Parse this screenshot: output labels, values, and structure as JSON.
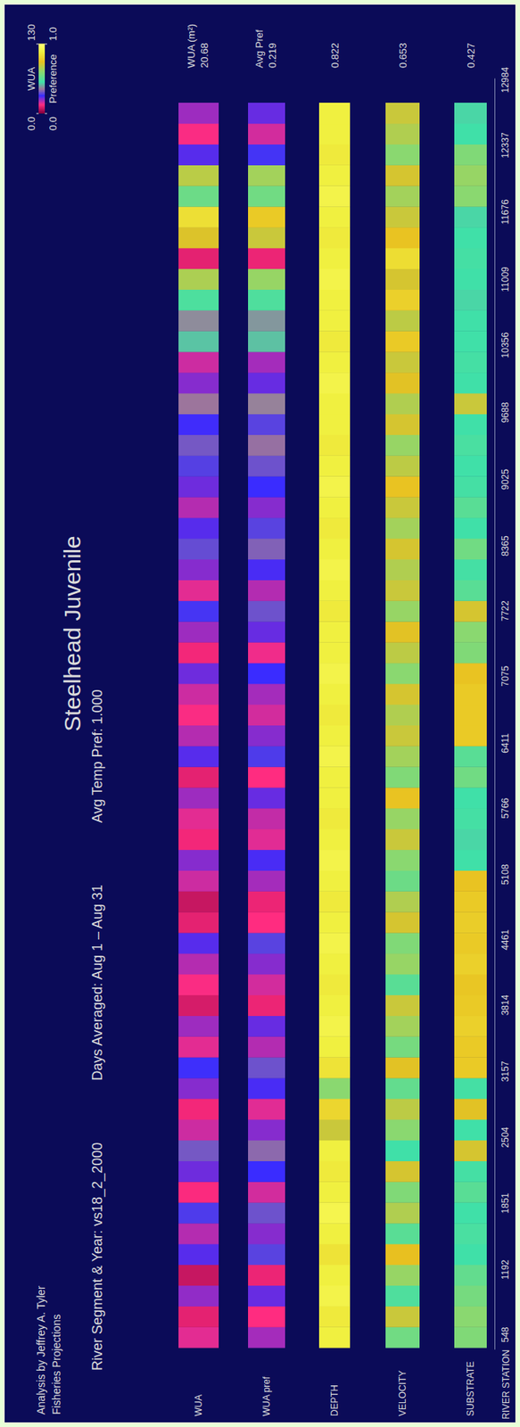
{
  "chart_data": {
    "type": "heatmap",
    "title": "Steelhead Juvenile",
    "credit": [
      "Analysis by Jeffrey A. Tyler",
      "Fisheries Projections"
    ],
    "subtitle": [
      "River Segment & Year: vs18_2_2000",
      "Days Averaged: Aug 1 – Aug 31",
      "Avg Temp Pref: 1.000"
    ],
    "x_label": "RIVER STATION",
    "xlim": [
      400,
      13000
    ],
    "xticks": [
      548,
      1192,
      1851,
      2504,
      3157,
      3814,
      4461,
      5108,
      5766,
      6411,
      7075,
      7722,
      8365,
      9025,
      9688,
      10356,
      11009,
      11676,
      12337,
      12984
    ],
    "extent": [
      420,
      12760
    ],
    "color_bars": [
      {
        "label": "WUA",
        "range": [
          0,
          130
        ],
        "ticks": [
          {
            "value": 0,
            "label": "0.0"
          },
          130
        ],
        "strips": [
          {
            "name": "WUA",
            "summary_label": "WUA (m²)",
            "summary": 20.68,
            "values": [
              18,
              12,
              25,
              8,
              30,
              22,
              35,
              15,
              28,
              40,
              20,
              14,
              26,
              33,
              18,
              24,
              10,
              16,
              22,
              30,
              12,
              8,
              20,
              26,
              14,
              18,
              24,
              12,
              30,
              22,
              16,
              20,
              28,
              14,
              24,
              34,
              18,
              26,
              38,
              30,
              22,
              28,
              36,
              40,
              32,
              45,
              26,
              20,
              55,
              48,
              62,
              85,
              12,
              95,
              110,
              70,
              88,
              30,
              16,
              24
            ]
          }
        ]
      },
      {
        "label": "Preference",
        "range": [
          0,
          1
        ],
        "ticks": [
          {
            "value": 0,
            "label": "0.0"
          },
          {
            "value": 1,
            "label": "1.0"
          }
        ],
        "strips": [
          {
            "name": "WUA pref",
            "summary_label": "Avg Pref",
            "summary": 0.219,
            "values": [
              0.18,
              0.12,
              0.22,
              0.1,
              0.28,
              0.2,
              0.3,
              0.15,
              0.25,
              0.33,
              0.2,
              0.14,
              0.24,
              0.3,
              0.17,
              0.22,
              0.1,
              0.15,
              0.2,
              0.28,
              0.12,
              0.1,
              0.18,
              0.24,
              0.14,
              0.16,
              0.22,
              0.12,
              0.27,
              0.2,
              0.15,
              0.18,
              0.25,
              0.13,
              0.22,
              0.3,
              0.17,
              0.24,
              0.32,
              0.28,
              0.2,
              0.25,
              0.3,
              0.34,
              0.28,
              0.36,
              0.22,
              0.18,
              0.42,
              0.38,
              0.48,
              0.62,
              0.1,
              0.7,
              0.78,
              0.55,
              0.64,
              0.26,
              0.15,
              0.22
            ]
          },
          {
            "name": "DEPTH",
            "summary": 0.822,
            "values": [
              0.9,
              0.88,
              0.92,
              0.9,
              0.86,
              0.9,
              0.93,
              0.9,
              0.88,
              0.9,
              0.7,
              0.82,
              0.6,
              0.86,
              0.9,
              0.92,
              0.9,
              0.88,
              0.9,
              0.92,
              0.9,
              0.88,
              0.9,
              0.92,
              0.9,
              0.88,
              0.9,
              0.9,
              0.92,
              0.9,
              0.88,
              0.9,
              0.92,
              0.9,
              0.9,
              0.88,
              0.9,
              0.92,
              0.9,
              0.88,
              0.9,
              0.92,
              0.9,
              0.88,
              0.9,
              0.9,
              0.92,
              0.9,
              0.88,
              0.9,
              0.9,
              0.92,
              0.9,
              0.88,
              0.9,
              0.92,
              0.9,
              0.88,
              0.9,
              0.9
            ]
          },
          {
            "name": "VELOCITY",
            "summary": 0.653,
            "values": [
              0.55,
              0.7,
              0.48,
              0.62,
              0.75,
              0.5,
              0.66,
              0.58,
              0.72,
              0.45,
              0.6,
              0.68,
              0.52,
              0.74,
              0.56,
              0.64,
              0.7,
              0.5,
              0.62,
              0.58,
              0.72,
              0.66,
              0.54,
              0.6,
              0.7,
              0.62,
              0.76,
              0.58,
              0.64,
              0.7,
              0.66,
              0.72,
              0.6,
              0.68,
              0.74,
              0.62,
              0.7,
              0.66,
              0.72,
              0.64,
              0.7,
              0.76,
              0.68,
              0.62,
              0.72,
              0.66,
              0.74,
              0.7,
              0.78,
              0.68,
              0.8,
              0.72,
              0.84,
              0.76,
              0.7,
              0.64,
              0.72,
              0.6,
              0.66,
              0.7
            ]
          },
          {
            "name": "SUBSTRATE",
            "summary": 0.427,
            "values": [
              0.58,
              0.6,
              0.56,
              0.52,
              0.45,
              0.47,
              0.45,
              0.5,
              0.46,
              0.72,
              0.45,
              0.74,
              0.46,
              0.78,
              0.78,
              0.8,
              0.78,
              0.77,
              0.8,
              0.78,
              0.79,
              0.78,
              0.76,
              0.45,
              0.44,
              0.46,
              0.45,
              0.55,
              0.5,
              0.78,
              0.78,
              0.78,
              0.76,
              0.58,
              0.6,
              0.72,
              0.5,
              0.46,
              0.55,
              0.45,
              0.5,
              0.46,
              0.45,
              0.47,
              0.45,
              0.7,
              0.45,
              0.46,
              0.45,
              0.45,
              0.44,
              0.45,
              0.46,
              0.45,
              0.44,
              0.6,
              0.62,
              0.58,
              0.45,
              0.44
            ]
          }
        ]
      }
    ]
  }
}
